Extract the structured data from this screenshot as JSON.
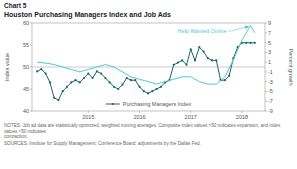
{
  "chart_data": {
    "type": "line",
    "title": "Chart 5",
    "subtitle": "Houston Purchasing Managers Index and Job Ads",
    "ylabel": "Index value",
    "y2label": "Percent growth",
    "notes": "NOTES: Job ad data are statistically optimized, weighted moving averages. Composite index values >50 indicates expansion, and index values <50 indicates\ncontraction.",
    "sources": "SOURCES: Institute for Supply Management; Conference Board; adjustments by the Dallas Fed.",
    "annotations": [
      "Help Wanted Online"
    ],
    "xlim": [
      2013.9,
      2018.45
    ],
    "xticks": [
      2015,
      2016,
      2017,
      2018
    ],
    "ylim": [
      40,
      60
    ],
    "yticks": [
      40,
      45,
      50,
      55,
      60
    ],
    "y2lim": [
      -9,
      9
    ],
    "y2ticks": [
      -9,
      -7,
      -5,
      -3,
      -1,
      1,
      3,
      5,
      7,
      9
    ],
    "hline": 50.0,
    "grid": false,
    "legend": "lower center",
    "series": [
      {
        "name": "Purchasing Managers Index",
        "color": "#1a6470",
        "marker": "circle",
        "x": [
          2014.0,
          2014.083,
          2014.167,
          2014.25,
          2014.333,
          2014.417,
          2014.5,
          2014.583,
          2014.667,
          2014.75,
          2014.833,
          2014.917,
          2015.0,
          2015.083,
          2015.167,
          2015.25,
          2015.333,
          2015.417,
          2015.5,
          2015.583,
          2015.667,
          2015.75,
          2015.833,
          2015.917,
          2016.0,
          2016.083,
          2016.167,
          2016.25,
          2016.333,
          2016.417,
          2016.5,
          2016.583,
          2016.667,
          2016.75,
          2016.833,
          2016.917,
          2017.0,
          2017.083,
          2017.167,
          2017.25,
          2017.333,
          2017.417,
          2017.5,
          2017.583,
          2017.667,
          2017.75,
          2017.833,
          2017.917,
          2018.0,
          2018.083,
          2018.167,
          2018.25
        ],
        "values": [
          49.0,
          49.5,
          48.5,
          46.5,
          43.0,
          42.5,
          44.5,
          45.5,
          46.5,
          47.0,
          46.5,
          47.5,
          48.5,
          47.5,
          49.0,
          48.5,
          47.5,
          46.5,
          45.5,
          45.0,
          46.0,
          47.5,
          47.0,
          47.0,
          45.5,
          44.5,
          44.0,
          44.5,
          45.0,
          45.5,
          46.5,
          47.0,
          50.5,
          51.0,
          51.5,
          50.5,
          54.0,
          51.5,
          54.5,
          53.5,
          52.0,
          51.5,
          51.5,
          47.0,
          47.0,
          48.0,
          52.0,
          54.5,
          55.5,
          55.5,
          55.5,
          55.5
        ]
      },
      {
        "color": "#50c8d8",
        "axis": "y2",
        "x": [
          2014.0,
          2014.167,
          2014.333,
          2014.5,
          2014.667,
          2014.833,
          2015.0,
          2015.167,
          2015.333,
          2015.5,
          2015.667,
          2015.833,
          2016.0,
          2016.167,
          2016.333,
          2016.5,
          2016.667,
          2016.833,
          2017.0,
          2017.167,
          2017.333,
          2017.5,
          2017.667,
          2017.833,
          2018.0,
          2018.167,
          2018.25
        ],
        "values": [
          1.0,
          0.8,
          0.5,
          0.0,
          -0.5,
          -1.0,
          -0.5,
          0.0,
          0.5,
          0.0,
          -1.0,
          -2.0,
          -2.5,
          -3.0,
          -3.5,
          -3.0,
          -2.5,
          -2.0,
          -2.0,
          -3.0,
          -3.5,
          -3.5,
          -2.0,
          1.5,
          5.5,
          8.5,
          7.0
        ]
      }
    ]
  }
}
